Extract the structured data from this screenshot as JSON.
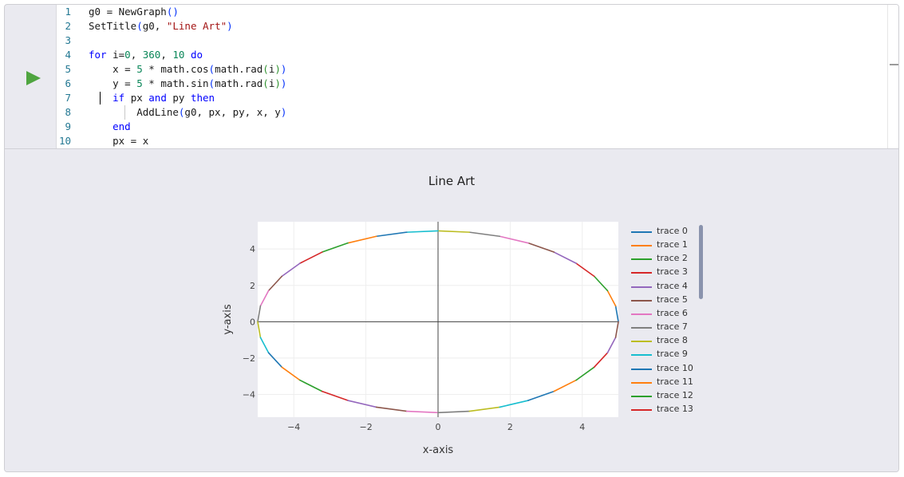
{
  "editor": {
    "run_button": "run-icon",
    "lines": [
      {
        "n": "1",
        "html": "g0 = NewGraph<span class='br1'>()</span>"
      },
      {
        "n": "2",
        "html": "SetTitle<span class='br1'>(</span>g0, <span class='str'>\"Line Art\"</span><span class='br1'>)</span>"
      },
      {
        "n": "3",
        "html": ""
      },
      {
        "n": "4",
        "html": "<span class='kw'>for</span> i=<span class='num'>0</span>, <span class='num'>360</span>, <span class='num'>10</span> <span class='kw'>do</span>"
      },
      {
        "n": "5",
        "html": "    x = <span class='num'>5</span> * math.cos<span class='br1'>(</span>math.rad<span class='br2'>(</span>i<span class='br2'>)</span><span class='br1'>)</span>"
      },
      {
        "n": "6",
        "html": "    y = <span class='num'>5</span> * math.sin<span class='br1'>(</span>math.rad<span class='br2'>(</span>i<span class='br2'>)</span><span class='br1'>)</span>"
      },
      {
        "n": "7",
        "html": "    <span class='kw'>if</span> px <span class='kw'>and</span> py <span class='kw'>then</span>"
      },
      {
        "n": "8",
        "html": "        AddLine<span class='br1'>(</span>g0, px, py, x, y<span class='br1'>)</span>"
      },
      {
        "n": "9",
        "html": "    <span class='kw'>end</span>"
      },
      {
        "n": "10",
        "html": "    px = x"
      }
    ]
  },
  "chart_data": {
    "type": "line",
    "title": "Line Art",
    "xlabel": "x-axis",
    "ylabel": "y-axis",
    "xlim": [
      -5,
      5
    ],
    "ylim": [
      -5.25,
      5.5
    ],
    "xticks": [
      -4,
      -2,
      0,
      2,
      4
    ],
    "yticks": [
      -4,
      -2,
      0,
      2,
      4
    ],
    "grid": true,
    "legend_position": "right",
    "palette": [
      "#1f77b4",
      "#ff7f0e",
      "#2ca02c",
      "#d62728",
      "#9467bd",
      "#8c564b",
      "#e377c2",
      "#7f7f7f",
      "#bcbd22",
      "#17becf"
    ],
    "segments": {
      "count": 36,
      "start_deg": 0,
      "step_deg": 10,
      "radius": 5
    },
    "series_visible_in_legend": [
      "trace 0",
      "trace 1",
      "trace 2",
      "trace 3",
      "trace 4",
      "trace 5",
      "trace 6",
      "trace 7",
      "trace 8",
      "trace 9",
      "trace 10",
      "trace 11",
      "trace 12",
      "trace 13"
    ]
  }
}
